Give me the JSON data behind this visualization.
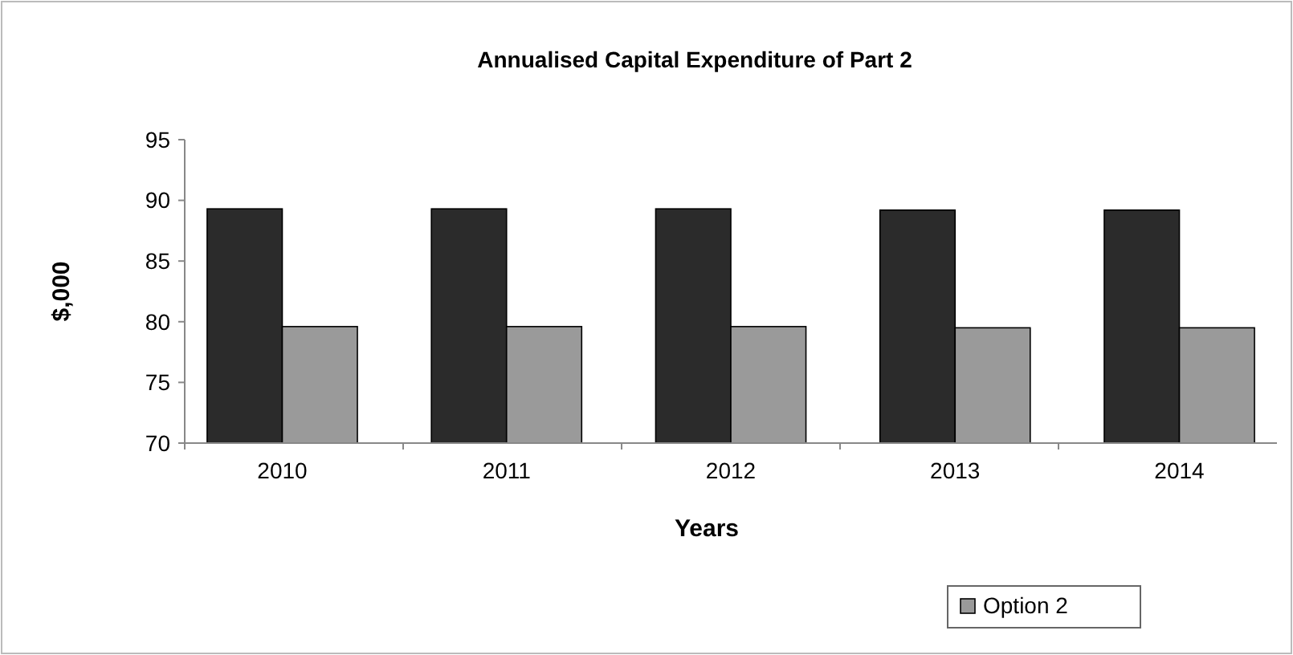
{
  "chart_data": {
    "type": "bar",
    "title": "Annualised Capital Expenditure of Part 2",
    "xlabel": "Years",
    "ylabel": "$,000",
    "categories": [
      "2010",
      "2011",
      "2012",
      "2013",
      "2014"
    ],
    "series": [
      {
        "color": "#2b2b2b",
        "values": [
          89.3,
          89.3,
          89.3,
          89.2,
          89.2
        ]
      },
      {
        "name": "Option 2",
        "color": "#9a9a9a",
        "values": [
          79.6,
          79.6,
          79.6,
          79.5,
          79.5
        ]
      }
    ],
    "ylim": [
      70,
      95
    ],
    "yticks": [
      70,
      75,
      80,
      85,
      90,
      95
    ],
    "grid": false,
    "legend": "bottom"
  }
}
